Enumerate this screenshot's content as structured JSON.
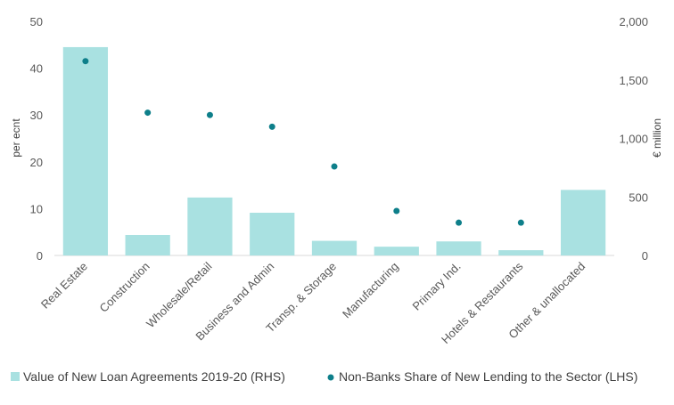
{
  "chart_data": {
    "type": "bar",
    "categories": [
      "Real Estate",
      "Construction",
      "Wholesale/Retail",
      "Business and Admin",
      "Transp. & Storage",
      "Manufacturing",
      "Primary Ind.",
      "Hotels & Restaurants",
      "Other & unallocated"
    ],
    "series": [
      {
        "name": "Value of New Loan Agreements 2019-20 (RHS)",
        "type": "bar",
        "axis": "right",
        "color": "#a9e1e1",
        "values": [
          1780,
          175,
          495,
          365,
          125,
          75,
          120,
          45,
          560
        ]
      },
      {
        "name": "Non-Banks Share of New Lending to the Sector (LHS)",
        "type": "scatter",
        "axis": "left",
        "color": "#0e7f8a",
        "values": [
          41.5,
          30.5,
          30,
          27.5,
          19,
          9.5,
          7,
          7,
          null
        ]
      }
    ],
    "ylabel_left": "per ecnt",
    "ylabel_right": "€ million",
    "ylim_left": [
      0,
      50
    ],
    "ylim_right": [
      0,
      2000
    ],
    "yticks_left": [
      "0",
      "10",
      "20",
      "30",
      "40",
      "50"
    ],
    "yticks_right": [
      "0",
      "500",
      "1,000",
      "1,500",
      "2,000"
    ],
    "grid": false,
    "legend_position": "bottom"
  }
}
